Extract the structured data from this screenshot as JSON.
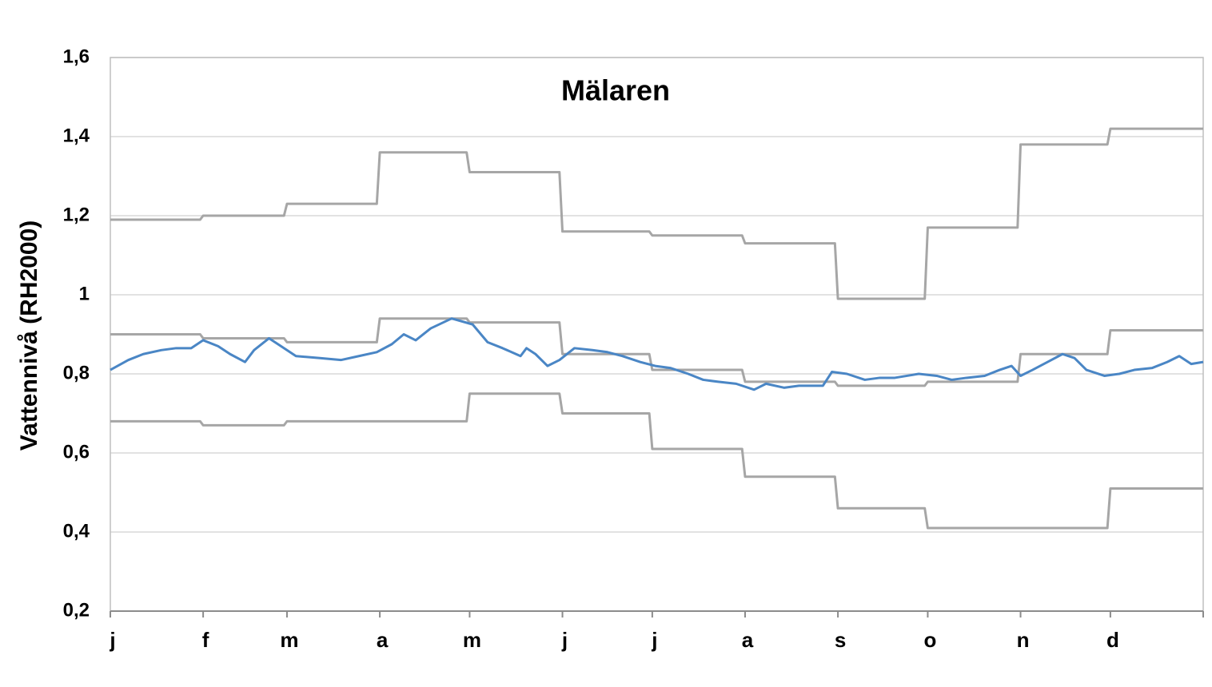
{
  "chart_data": {
    "type": "line",
    "title": "Mälaren",
    "y_label": "Vattennivå (RH2000)",
    "xlim": [
      0,
      365
    ],
    "xticks": [
      {
        "value": 0,
        "label": "j"
      },
      {
        "value": 31,
        "label": "f"
      },
      {
        "value": 59,
        "label": "m"
      },
      {
        "value": 90,
        "label": "a"
      },
      {
        "value": 120,
        "label": "m"
      },
      {
        "value": 151,
        "label": "j"
      },
      {
        "value": 181,
        "label": "j"
      },
      {
        "value": 212,
        "label": "a"
      },
      {
        "value": 243,
        "label": "s"
      },
      {
        "value": 273,
        "label": "o"
      },
      {
        "value": 304,
        "label": "n"
      },
      {
        "value": 334,
        "label": "d"
      }
    ],
    "ylim": [
      0.2,
      1.6
    ],
    "yticks": [
      {
        "value": 0.2,
        "label": "0,2"
      },
      {
        "value": 0.4,
        "label": "0,4"
      },
      {
        "value": 0.6,
        "label": "0,6"
      },
      {
        "value": 0.8,
        "label": "0,8"
      },
      1,
      {
        "value": 1.2,
        "label": "1,2"
      },
      {
        "value": 1.4,
        "label": "1,4"
      },
      {
        "value": 1.6,
        "label": "1,6"
      }
    ],
    "grid": true,
    "series": [
      {
        "color": "#a6a6a6",
        "x": [
          0,
          30,
          31,
          58,
          59,
          89,
          90,
          119,
          120,
          150,
          151,
          180,
          181,
          211,
          212,
          242,
          243,
          272,
          273,
          303,
          304,
          333,
          334,
          365
        ],
        "values": [
          1.19,
          1.19,
          1.2,
          1.2,
          1.23,
          1.23,
          1.36,
          1.36,
          1.31,
          1.31,
          1.16,
          1.16,
          1.15,
          1.15,
          1.13,
          1.13,
          0.99,
          0.99,
          1.17,
          1.17,
          1.38,
          1.38,
          1.42,
          1.42
        ]
      },
      {
        "color": "#a6a6a6",
        "x": [
          0,
          30,
          31,
          58,
          59,
          89,
          90,
          119,
          120,
          150,
          151,
          180,
          181,
          211,
          212,
          242,
          243,
          272,
          273,
          303,
          304,
          333,
          334,
          365
        ],
        "values": [
          0.9,
          0.9,
          0.89,
          0.89,
          0.88,
          0.88,
          0.94,
          0.94,
          0.93,
          0.93,
          0.85,
          0.85,
          0.81,
          0.81,
          0.78,
          0.78,
          0.77,
          0.77,
          0.78,
          0.78,
          0.85,
          0.85,
          0.91,
          0.91
        ]
      },
      {
        "color": "#a6a6a6",
        "x": [
          0,
          30,
          31,
          58,
          59,
          89,
          90,
          119,
          120,
          150,
          151,
          180,
          181,
          211,
          212,
          242,
          243,
          272,
          273,
          303,
          304,
          333,
          334,
          365
        ],
        "values": [
          0.68,
          0.68,
          0.67,
          0.67,
          0.68,
          0.68,
          0.68,
          0.68,
          0.75,
          0.75,
          0.7,
          0.7,
          0.61,
          0.61,
          0.54,
          0.54,
          0.46,
          0.46,
          0.41,
          0.41,
          0.41,
          0.41,
          0.51,
          0.51
        ]
      },
      {
        "color": "#4a86c5",
        "x": [
          0,
          6,
          11,
          17,
          22,
          27,
          31,
          36,
          40,
          45,
          48,
          53,
          56,
          62,
          70,
          77,
          83,
          89,
          94,
          98,
          102,
          107,
          114,
          121,
          126,
          131,
          137,
          139,
          142,
          146,
          150,
          155,
          161,
          166,
          171,
          177,
          182,
          187,
          193,
          198,
          203,
          209,
          215,
          219,
          225,
          230,
          238,
          241,
          246,
          252,
          257,
          262,
          270,
          276,
          281,
          286,
          292,
          297,
          301,
          304,
          308,
          313,
          318,
          322,
          326,
          332,
          337,
          342,
          348,
          353,
          357,
          361,
          365
        ],
        "values": [
          0.81,
          0.835,
          0.85,
          0.86,
          0.865,
          0.865,
          0.885,
          0.87,
          0.85,
          0.83,
          0.86,
          0.89,
          0.875,
          0.845,
          0.84,
          0.835,
          0.845,
          0.855,
          0.875,
          0.9,
          0.885,
          0.915,
          0.94,
          0.925,
          0.88,
          0.865,
          0.845,
          0.865,
          0.85,
          0.82,
          0.835,
          0.865,
          0.86,
          0.855,
          0.845,
          0.83,
          0.82,
          0.815,
          0.8,
          0.785,
          0.78,
          0.775,
          0.76,
          0.775,
          0.765,
          0.77,
          0.77,
          0.805,
          0.8,
          0.785,
          0.79,
          0.79,
          0.8,
          0.795,
          0.785,
          0.79,
          0.795,
          0.81,
          0.82,
          0.795,
          0.81,
          0.83,
          0.85,
          0.84,
          0.81,
          0.795,
          0.8,
          0.81,
          0.815,
          0.83,
          0.845,
          0.825,
          0.83
        ]
      }
    ]
  }
}
